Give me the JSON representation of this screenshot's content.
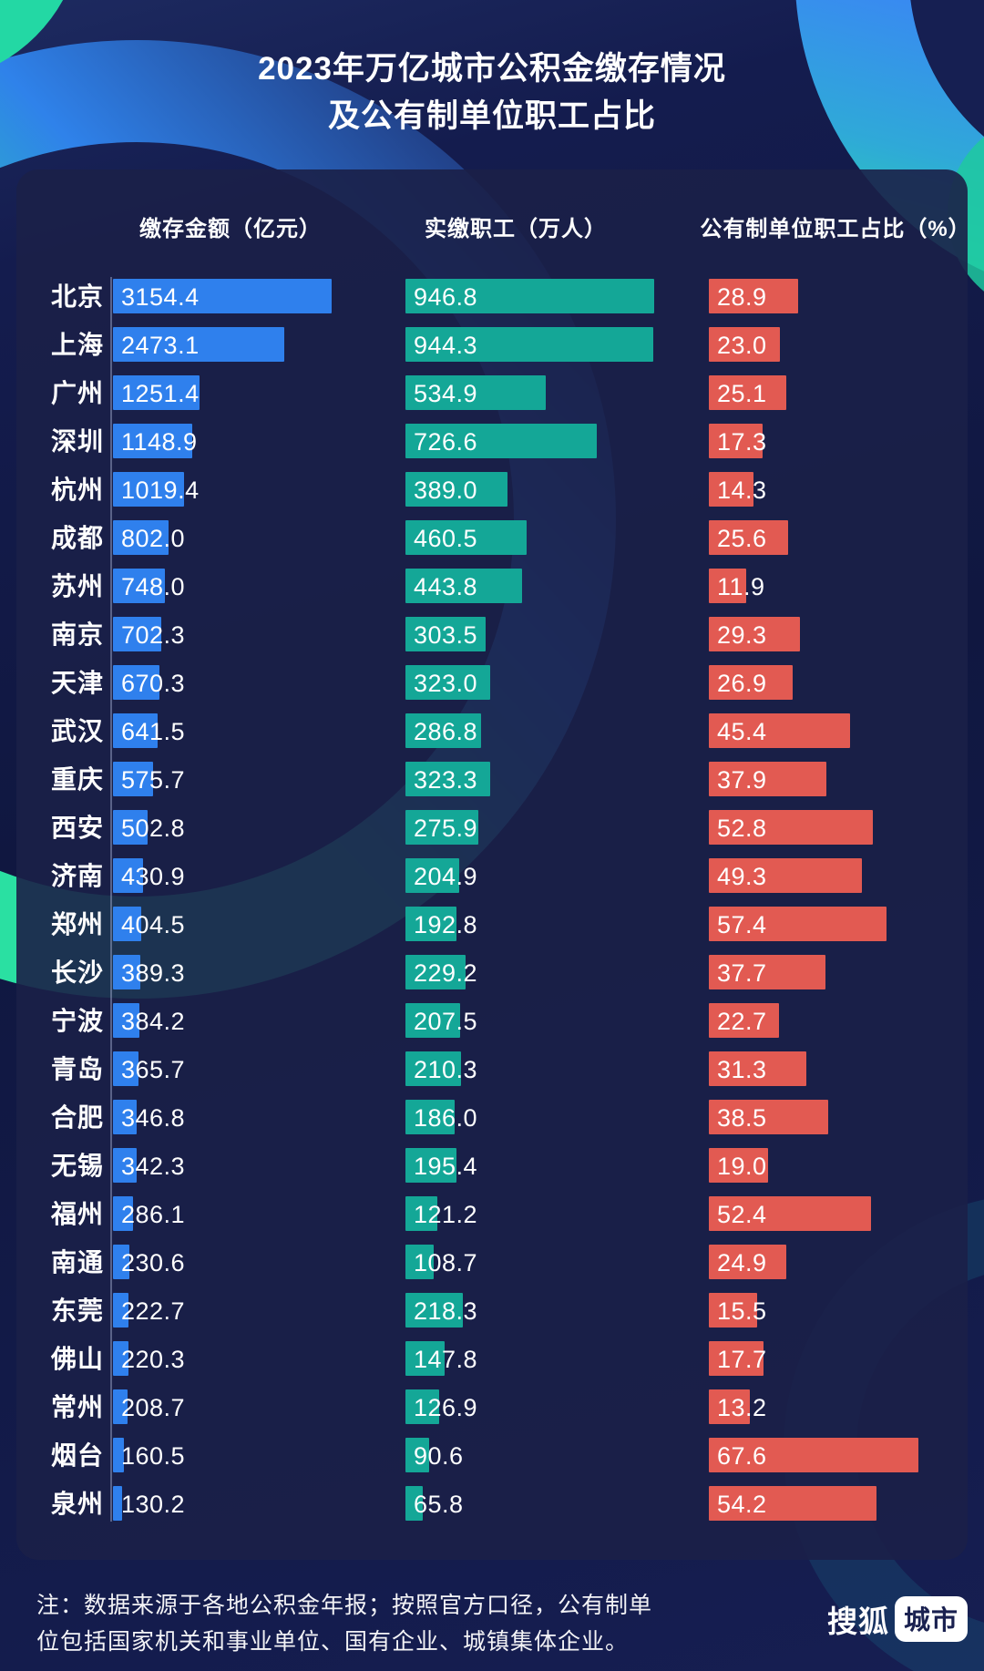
{
  "header": {
    "title_line1": "2023年万亿城市公积金缴存情况",
    "title_line2": "及公有制单位职工占比"
  },
  "columns": [
    {
      "label": "缴存金额（亿元）"
    },
    {
      "label": "实缴职工（万人）"
    },
    {
      "label": "公有制单位职工占比（%）"
    }
  ],
  "footer": {
    "note_line1": "注：数据来源于各地公积金年报；按照官方口径，公有制单",
    "note_line2": "位包括国家机关和事业单位、国有企业、城镇集体企业。",
    "brand": {
      "name": "搜狐",
      "badge": "城市"
    }
  },
  "colors": {
    "background": "#11183f",
    "card": "#1b2048",
    "deposit_bar": "#2f80ed",
    "employees_bar": "#14a797",
    "public_share_bar": "#e25a52",
    "text": "#ffffff",
    "decor_teal": "#27dba6",
    "decor_blue": "#3a86f4"
  },
  "chart_data": {
    "type": "bar",
    "orientation": "horizontal",
    "value_labels": true,
    "grid": false,
    "legend": "none",
    "title": "2023年万亿城市公积金缴存情况及公有制单位职工占比",
    "categories": [
      "北京",
      "上海",
      "广州",
      "深圳",
      "杭州",
      "成都",
      "苏州",
      "南京",
      "天津",
      "武汉",
      "重庆",
      "西安",
      "济南",
      "郑州",
      "长沙",
      "宁波",
      "青岛",
      "合肥",
      "无锡",
      "福州",
      "南通",
      "东莞",
      "佛山",
      "常州",
      "烟台",
      "泉州"
    ],
    "series": [
      {
        "name": "缴存金额（亿元）",
        "unit": "亿元",
        "color": "#2f80ed",
        "values": [
          3154.4,
          2473.1,
          1251.4,
          1148.9,
          1019.4,
          802.0,
          748.0,
          702.3,
          670.3,
          641.5,
          575.7,
          502.8,
          430.9,
          404.5,
          389.3,
          384.2,
          365.7,
          346.8,
          342.3,
          286.1,
          230.6,
          222.7,
          220.3,
          208.7,
          160.5,
          130.2
        ]
      },
      {
        "name": "实缴职工（万人）",
        "unit": "万人",
        "color": "#14a797",
        "values": [
          946.8,
          944.3,
          534.9,
          726.6,
          389.0,
          460.5,
          443.8,
          303.5,
          323.0,
          286.8,
          323.3,
          275.9,
          204.9,
          192.8,
          229.2,
          207.5,
          210.3,
          186.0,
          195.4,
          121.2,
          108.7,
          218.3,
          147.8,
          126.9,
          90.6,
          65.8
        ]
      },
      {
        "name": "公有制单位职工占比（%）",
        "unit": "%",
        "color": "#e25a52",
        "values": [
          28.9,
          23.0,
          25.1,
          17.3,
          14.3,
          25.6,
          11.9,
          29.3,
          26.9,
          45.4,
          37.9,
          52.8,
          49.3,
          57.4,
          37.7,
          22.7,
          31.3,
          38.5,
          19.0,
          52.4,
          24.9,
          15.5,
          17.7,
          13.2,
          67.6,
          54.2
        ]
      }
    ]
  }
}
